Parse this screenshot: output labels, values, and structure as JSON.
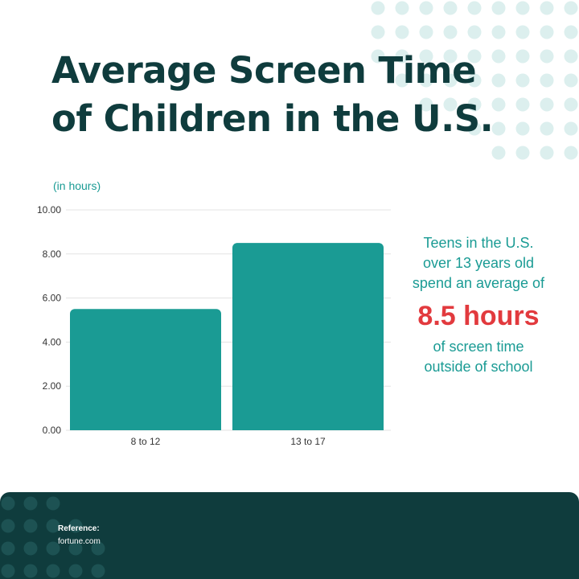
{
  "title": {
    "line1": "Average Screen Time",
    "line2": "of Children in the U.S."
  },
  "chart_data": {
    "type": "bar",
    "title": "Average Screen Time of Children in the U.S.",
    "ylabel": "(in hours)",
    "xlabel": "",
    "categories": [
      "8 to 12",
      "13 to 17"
    ],
    "values": [
      5.5,
      8.5
    ],
    "ylim": [
      0,
      10
    ],
    "yticks": [
      "0.00",
      "2.00",
      "4.00",
      "6.00",
      "8.00",
      "10.00"
    ],
    "grid": true,
    "bar_color": "#1a9b94"
  },
  "callout": {
    "line1": "Teens in the U.S.",
    "line2": "over 13 years old",
    "line3": "spend an average of",
    "highlight": "8.5 hours",
    "line4": "of screen time",
    "line5": "outside of school"
  },
  "footer": {
    "reference_label": "Reference:",
    "reference_source": "fortune.com"
  },
  "colors": {
    "dark_teal": "#0f3c3d",
    "teal": "#1a9b94",
    "accent_red": "#e23a3e",
    "dot_light": "#dcefee",
    "dot_dark": "#1d5253"
  }
}
